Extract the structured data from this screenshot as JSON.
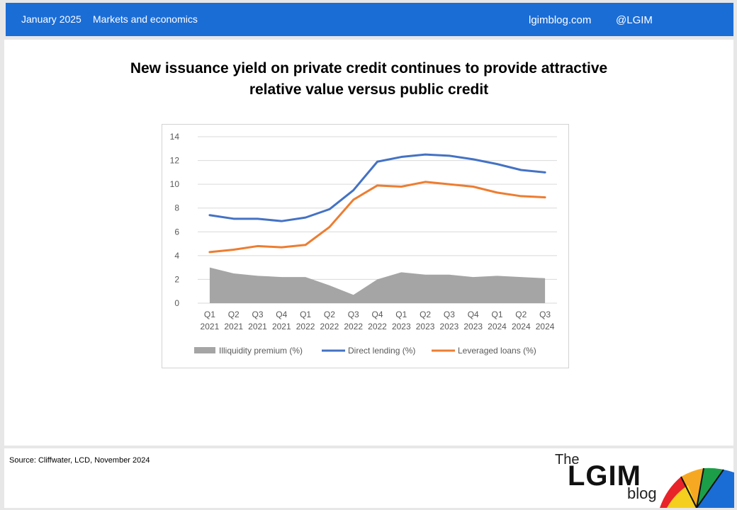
{
  "header": {
    "date": "January 2025",
    "section": "Markets and economics",
    "site": "lgimblog.com",
    "handle": "@LGIM"
  },
  "title_line1": "New issuance yield on private credit continues to provide attractive",
  "title_line2": "relative value versus public credit",
  "footer": {
    "source": "Source: Cliffwater, LCD, November 2024",
    "logo_the": "The",
    "logo_lgim": "LGIM",
    "logo_blog": "blog"
  },
  "colors": {
    "header_bg": "#1b6dd6",
    "direct_lending": "#4472c4",
    "leveraged_loans": "#ed7d31",
    "illiquidity": "#a5a5a5"
  },
  "chart_data": {
    "type": "line",
    "categories": [
      [
        "Q1",
        "2021"
      ],
      [
        "Q2",
        "2021"
      ],
      [
        "Q3",
        "2021"
      ],
      [
        "Q4",
        "2021"
      ],
      [
        "Q1",
        "2022"
      ],
      [
        "Q2",
        "2022"
      ],
      [
        "Q3",
        "2022"
      ],
      [
        "Q4",
        "2022"
      ],
      [
        "Q1",
        "2023"
      ],
      [
        "Q2",
        "2023"
      ],
      [
        "Q3",
        "2023"
      ],
      [
        "Q4",
        "2023"
      ],
      [
        "Q1",
        "2024"
      ],
      [
        "Q2",
        "2024"
      ],
      [
        "Q3",
        "2024"
      ]
    ],
    "ylim": [
      0,
      14
    ],
    "yticks": [
      0,
      2,
      4,
      6,
      8,
      10,
      12,
      14
    ],
    "grid": true,
    "legend_position": "bottom",
    "series": [
      {
        "name": "Illiquidity premium (%)",
        "kind": "area",
        "color": "#a5a5a5",
        "values": [
          3.0,
          2.5,
          2.3,
          2.2,
          2.2,
          1.5,
          0.7,
          2.0,
          2.6,
          2.4,
          2.4,
          2.2,
          2.3,
          2.2,
          2.1
        ]
      },
      {
        "name": "Direct lending (%)",
        "kind": "line",
        "color": "#4472c4",
        "values": [
          7.4,
          7.1,
          7.1,
          6.9,
          7.2,
          7.9,
          9.5,
          11.9,
          12.3,
          12.5,
          12.4,
          12.1,
          11.7,
          11.2,
          11.0
        ]
      },
      {
        "name": "Leveraged loans (%)",
        "kind": "line",
        "color": "#ed7d31",
        "values": [
          4.3,
          4.5,
          4.8,
          4.7,
          4.9,
          6.4,
          8.7,
          9.9,
          9.8,
          10.2,
          10.0,
          9.8,
          9.3,
          9.0,
          8.9
        ]
      }
    ]
  }
}
